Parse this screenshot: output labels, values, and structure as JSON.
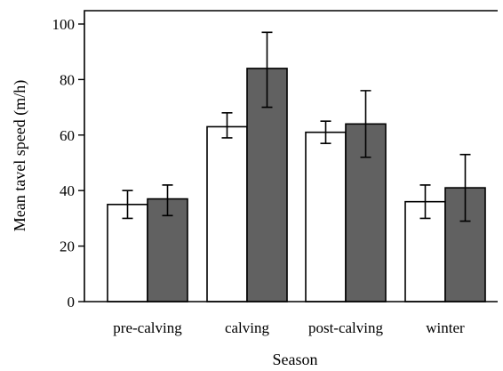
{
  "chart_data": {
    "type": "bar",
    "title": "",
    "xlabel": "Season",
    "ylabel": "Mean tavel speed (m/h)",
    "ylim": [
      0,
      100
    ],
    "yticks": [
      0,
      20,
      40,
      60,
      80,
      100
    ],
    "categories": [
      "pre-calving",
      "calving",
      "post-calving",
      "winter"
    ],
    "series": [
      {
        "color": "#ffffff",
        "values": [
          35,
          63,
          61,
          36
        ],
        "error": [
          [
            30,
            40
          ],
          [
            59,
            68
          ],
          [
            57,
            65
          ],
          [
            30,
            42
          ]
        ]
      },
      {
        "color": "#616161",
        "values": [
          37,
          84,
          64,
          41
        ],
        "error": [
          [
            31,
            42
          ],
          [
            70,
            97
          ],
          [
            52,
            76
          ],
          [
            29,
            53
          ]
        ]
      }
    ],
    "grid": false,
    "legend": "none"
  }
}
